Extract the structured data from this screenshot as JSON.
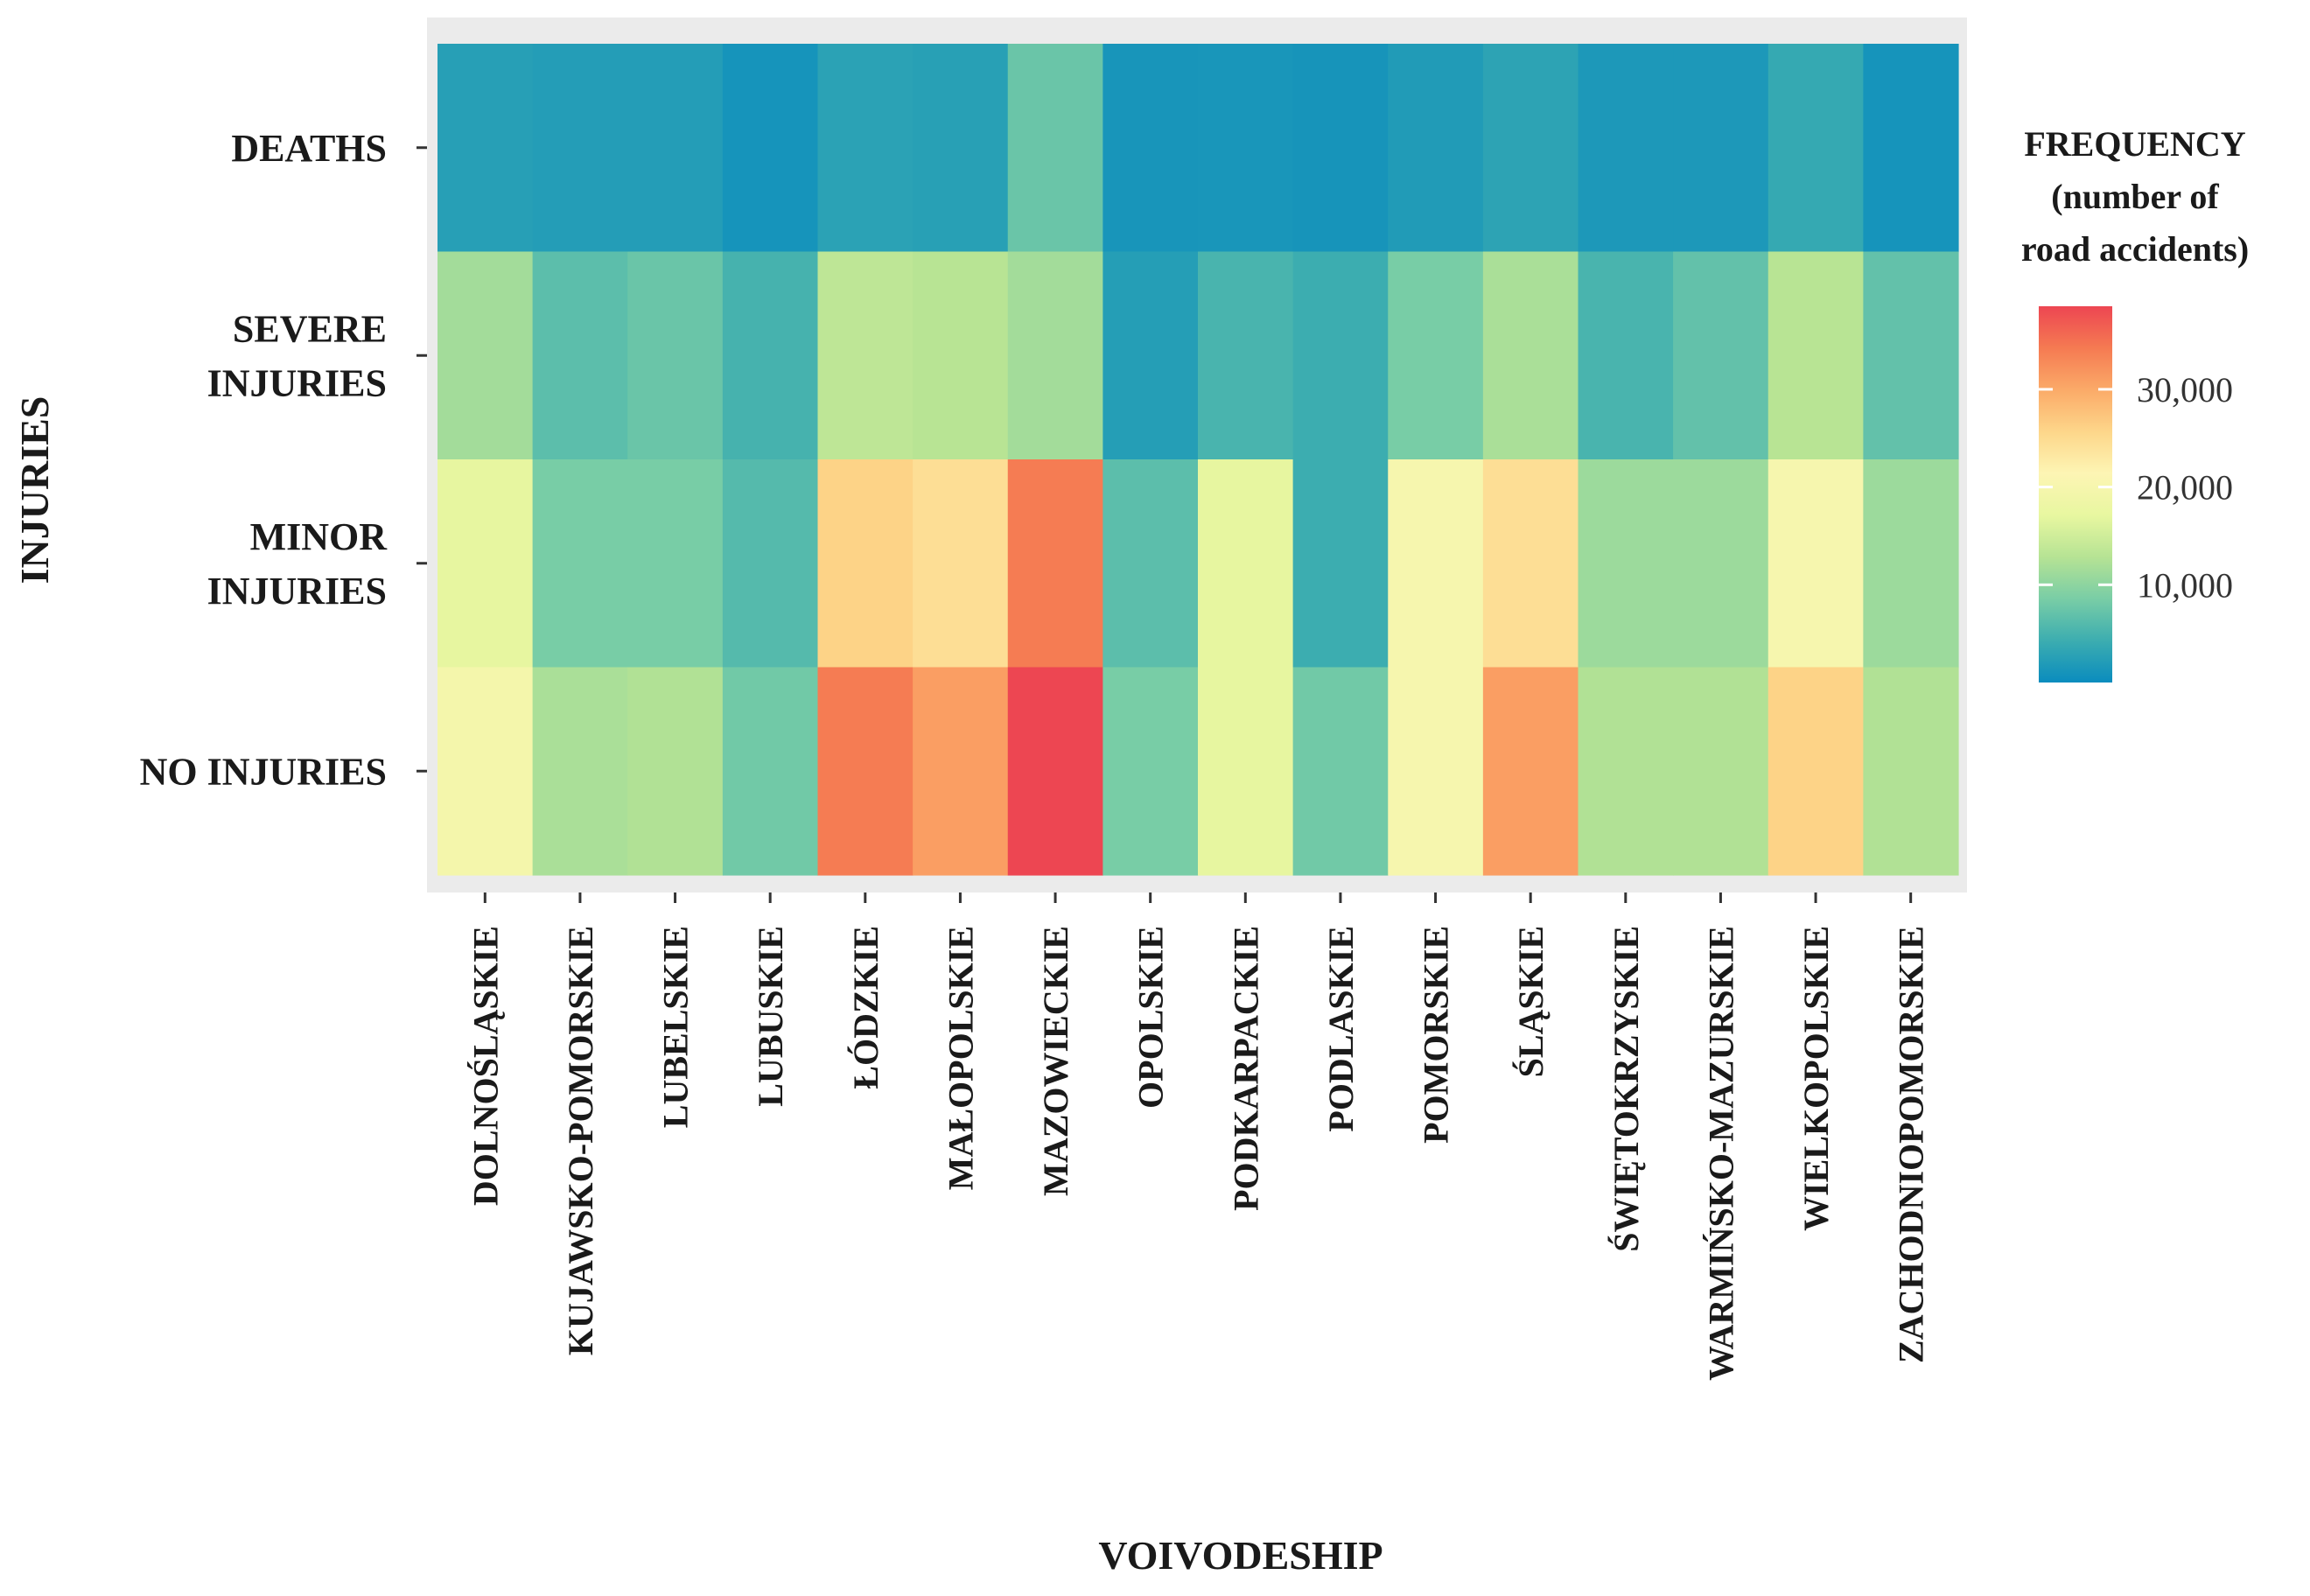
{
  "chart_data": {
    "type": "heatmap",
    "title": "",
    "xlabel": "VOIVODESHIP",
    "ylabel": "INJURIES",
    "x_categories": [
      "DOLNOŚLĄSKIE",
      "KUJAWSKO-POMORSKIE",
      "LUBELSKIE",
      "LUBUSKIE",
      "ŁÓDZKIE",
      "MAŁOPOLSKIE",
      "MAZOWIECKIE",
      "OPOLSKIE",
      "PODKARPACKIE",
      "PODLASKIE",
      "POMORSKIE",
      "ŚLĄSKIE",
      "ŚWIĘTOKRZYSKIE",
      "WARMIŃSKO-MAZURSKIE",
      "WIELKOPOLSKIE",
      "ZACHODNIOPOMORSKIE"
    ],
    "y_categories": [
      {
        "key": "deaths",
        "lines": [
          "DEATHS"
        ]
      },
      {
        "key": "severe",
        "lines": [
          "SEVERE",
          "INJURIES"
        ]
      },
      {
        "key": "minor",
        "lines": [
          "MINOR",
          "INJURIES"
        ]
      },
      {
        "key": "none",
        "lines": [
          "NO INJURIES"
        ]
      }
    ],
    "values": [
      [
        2500,
        2200,
        2200,
        1000,
        2800,
        2600,
        7500,
        1200,
        1300,
        1100,
        2000,
        3000,
        1600,
        1600,
        3700,
        1000
      ],
      [
        11500,
        6500,
        7500,
        5000,
        13500,
        13000,
        11500,
        2300,
        5200,
        4300,
        8500,
        12000,
        5200,
        7000,
        13000,
        7000
      ],
      [
        17000,
        8500,
        8500,
        6000,
        26000,
        24500,
        34000,
        6500,
        17000,
        4300,
        20000,
        24500,
        11000,
        11000,
        20000,
        11000
      ],
      [
        19500,
        12000,
        12500,
        8000,
        34000,
        31000,
        38500,
        8500,
        17000,
        8000,
        20000,
        31000,
        12500,
        12500,
        26000,
        12500
      ]
    ],
    "colorbar": {
      "title_lines": [
        "FREQUENCY",
        "(number of",
        "road accidents)"
      ],
      "min": 0,
      "max": 38500,
      "ticks": [
        10000,
        20000,
        30000
      ],
      "tick_labels": [
        "10,000",
        "20,000",
        "30,000"
      ],
      "colors": [
        "#0A8CBE",
        "#3CADB0",
        "#79CDA6",
        "#B6E394",
        "#E8F7A0",
        "#FDF5B4",
        "#FDD68A",
        "#FBAA68",
        "#F57A52",
        "#ED4652"
      ]
    },
    "panel_background": "#EBEBEB"
  }
}
